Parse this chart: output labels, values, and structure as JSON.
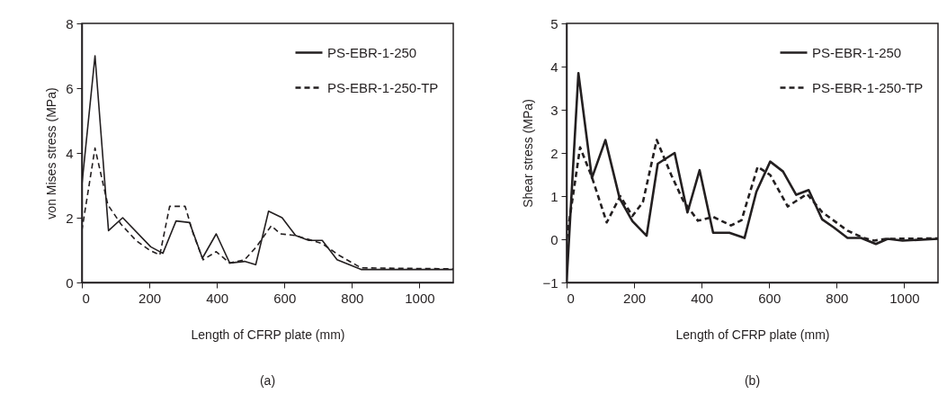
{
  "chart_data": [
    {
      "type": "line",
      "title": "(a)",
      "xlabel": "Length of CFRP plate (mm)",
      "ylabel": "von Mises stress (MPa)",
      "xlim": [
        0,
        1100
      ],
      "xticks": [
        0,
        200,
        400,
        600,
        800,
        1000
      ],
      "ylim": [
        0,
        8
      ],
      "yticks": [
        0,
        2,
        4,
        6,
        8
      ],
      "grid": false,
      "legend": "top right",
      "series": [
        {
          "name": "PS-EBR-1-250",
          "color": "#231f20",
          "line_style": "solid",
          "x": [
            0,
            39,
            79,
            121,
            204,
            240,
            279,
            319,
            357,
            398,
            438,
            482,
            515,
            553,
            593,
            633,
            672,
            712,
            756,
            827,
            1100
          ],
          "values": [
            3,
            7,
            1.6,
            2,
            1.1,
            0.9,
            1.9,
            1.85,
            0.75,
            1.5,
            0.6,
            0.65,
            0.55,
            2.2,
            2,
            1.45,
            1.3,
            1.3,
            0.7,
            0.4,
            0.4
          ]
        },
        {
          "name": "PS-EBR-1-250-TP",
          "color": "#231f20",
          "line_style": "dashed",
          "x": [
            0,
            39,
            77,
            116,
            160,
            200,
            231,
            260,
            306,
            330,
            359,
            398,
            438,
            482,
            517,
            561,
            588,
            633,
            712,
            760,
            827,
            1100
          ],
          "values": [
            1.6,
            4.15,
            2.4,
            1.8,
            1.3,
            1,
            0.85,
            2.35,
            2.35,
            1.5,
            0.7,
            0.95,
            0.6,
            0.7,
            1.1,
            1.75,
            1.5,
            1.45,
            1.2,
            0.85,
            0.45,
            0.42
          ]
        }
      ]
    },
    {
      "type": "line",
      "title": "(b)",
      "xlabel": "Length of CFRP plate  (mm)",
      "ylabel": "Shear stress (MPa)",
      "xlim": [
        0,
        1100
      ],
      "xticks": [
        0,
        200,
        400,
        600,
        800,
        1000
      ],
      "ylim": [
        -1,
        5
      ],
      "yticks": [
        -1,
        0,
        1,
        2,
        3,
        4,
        5
      ],
      "grid": false,
      "legend": "top right",
      "series": [
        {
          "name": "PS-EBR-1-250",
          "color": "#231f20",
          "line_style": "solid",
          "x": [
            0,
            35,
            75,
            115,
            157,
            195,
            237,
            270,
            320,
            358,
            394,
            434,
            482,
            527,
            562,
            603,
            641,
            680,
            717,
            757,
            792,
            832,
            872,
            916,
            951,
            995,
            1100
          ],
          "values": [
            -1,
            3.85,
            1.42,
            2.3,
            0.95,
            0.42,
            0.08,
            1.75,
            2,
            0.62,
            1.6,
            0.15,
            0.15,
            0.03,
            1.1,
            1.8,
            1.57,
            1.03,
            1.14,
            0.46,
            0.27,
            0.03,
            0.03,
            -0.11,
            0.01,
            -0.03,
            0.01
          ]
        },
        {
          "name": "PS-EBR-1-250-TP",
          "color": "#231f20",
          "line_style": "dashed",
          "x": [
            0,
            40,
            75,
            119,
            159,
            195,
            226,
            267,
            310,
            345,
            389,
            434,
            487,
            518,
            566,
            603,
            655,
            712,
            757,
            832,
            880,
            911,
            947,
            1100
          ],
          "values": [
            0,
            2.13,
            1.44,
            0.39,
            1,
            0.54,
            0.86,
            2.3,
            1.49,
            0.9,
            0.43,
            0.52,
            0.32,
            0.44,
            1.68,
            1.49,
            0.76,
            1.05,
            0.63,
            0.2,
            0.03,
            -0.03,
            0.01,
            0.02
          ]
        }
      ]
    }
  ]
}
